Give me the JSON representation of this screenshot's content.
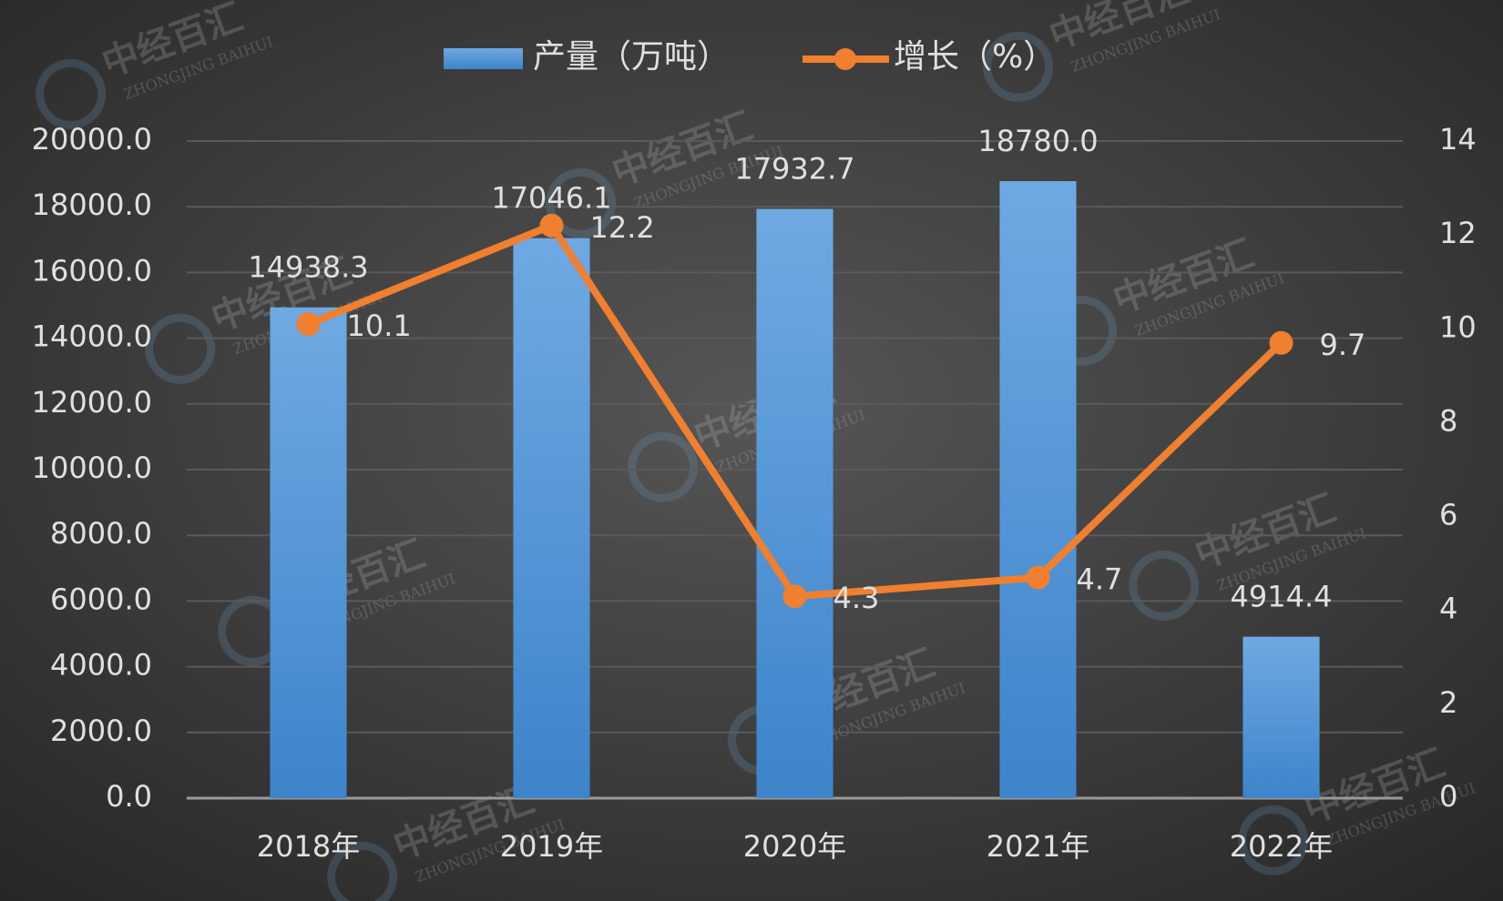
{
  "chart_data": {
    "type": "bar",
    "categories": [
      "2018年",
      "2019年",
      "2020年",
      "2021年",
      "2022年"
    ],
    "series": [
      {
        "name": "产量（万吨）",
        "type": "bar",
        "color": "#5b9bd5",
        "values": [
          14938.3,
          17046.1,
          17932.7,
          18780.0,
          4914.4
        ],
        "value_labels": [
          "14938.3",
          "17046.1",
          "17932.7",
          "18780.0",
          "4914.4"
        ]
      },
      {
        "name": "增长（%）",
        "type": "line",
        "axis": "y2",
        "color": "#f07f2f",
        "values": [
          10.1,
          12.2,
          4.3,
          4.7,
          9.7
        ]
      }
    ],
    "ylim": [
      0,
      20000
    ],
    "yticks": [
      {
        "value": 0,
        "label": "0.0"
      },
      {
        "value": 2000,
        "label": "2000.0"
      },
      {
        "value": 4000,
        "label": "4000.0"
      },
      {
        "value": 6000,
        "label": "6000.0"
      },
      {
        "value": 8000,
        "label": "8000.0"
      },
      {
        "value": 10000,
        "label": "10000.0"
      },
      {
        "value": 12000,
        "label": "12000.0"
      },
      {
        "value": 14000,
        "label": "14000.0"
      },
      {
        "value": 16000,
        "label": "16000.0"
      },
      {
        "value": 18000,
        "label": "18000.0"
      },
      {
        "value": 20000,
        "label": "20000.0"
      }
    ],
    "y2lim": [
      0,
      14
    ],
    "y2ticks": [
      0,
      2,
      4,
      6,
      8,
      10,
      12,
      14
    ],
    "grid": true,
    "legend": "top",
    "watermark": [
      "中经百汇",
      "ZHONGJING BAIHUI"
    ]
  }
}
